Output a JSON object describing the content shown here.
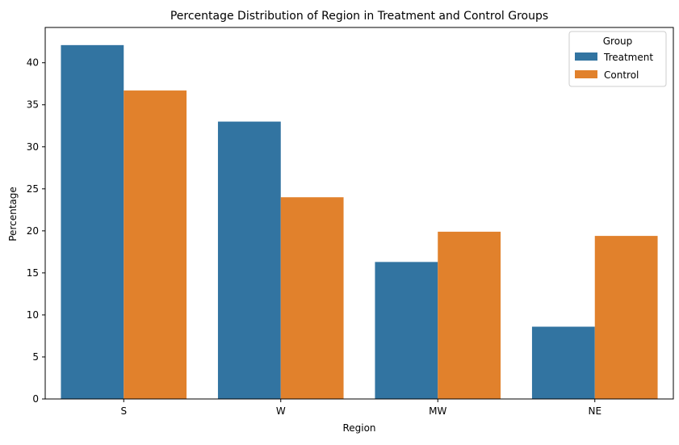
{
  "chart_data": {
    "type": "bar",
    "title": "Percentage Distribution of Region in Treatment and Control Groups",
    "xlabel": "Region",
    "ylabel": "Percentage",
    "categories": [
      "S",
      "W",
      "MW",
      "NE"
    ],
    "series": [
      {
        "name": "Treatment",
        "values": [
          42.1,
          33.0,
          16.3,
          8.6
        ],
        "color": "#3274a1"
      },
      {
        "name": "Control",
        "values": [
          36.7,
          24.0,
          19.9,
          19.4
        ],
        "color": "#e1812c"
      }
    ],
    "ylim": [
      0,
      44.2
    ],
    "yticks": [
      0,
      5,
      10,
      15,
      20,
      25,
      30,
      35,
      40
    ],
    "grid": false,
    "legend": {
      "title": "Group",
      "position": "top-right"
    }
  }
}
